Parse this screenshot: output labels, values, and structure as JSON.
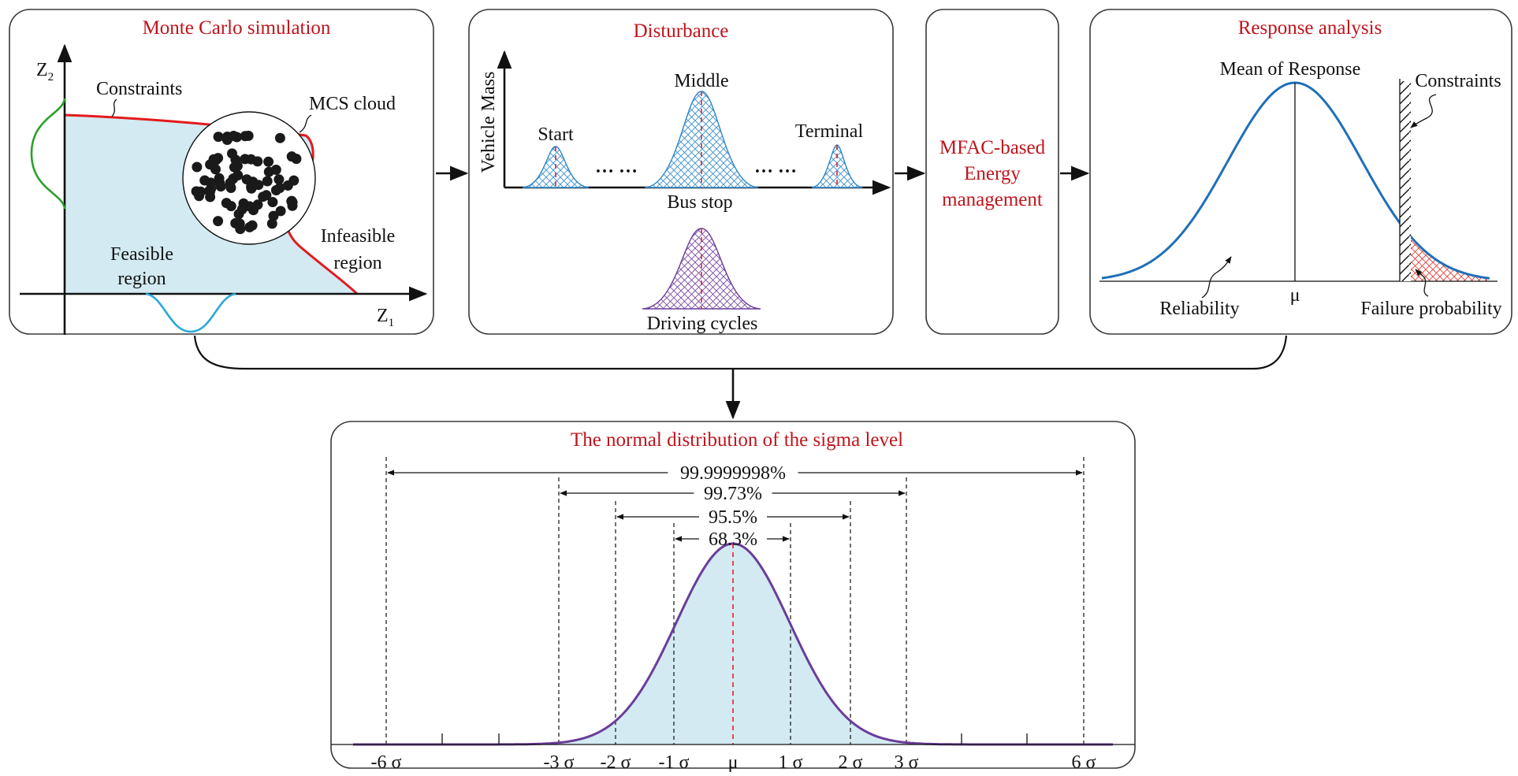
{
  "colors": {
    "title_red": "#c0141c",
    "feasible_fill": "#d3eaf2",
    "constraint_red": "#e41a1c",
    "blue_curve": "#1f6fb8",
    "green_curve": "#2ca02c",
    "cyan_curve": "#2aa7d8",
    "purple_curve": "#6a3d9a",
    "axis_black": "#111111"
  },
  "mcs_panel": {
    "title": "Monte Carlo simulation",
    "z2_label": "Z",
    "z2_sub": "2",
    "z1_label": "Z",
    "z1_sub": "1",
    "constraints_label": "Constraints",
    "cloud_label": "MCS cloud",
    "feasible_line1": "Feasible",
    "feasible_line2": "region",
    "infeasible_line1": "Infeasible",
    "infeasible_line2": "region"
  },
  "disturbance_panel": {
    "title": "Disturbance",
    "y_axis_label": "Vehicle Mass",
    "start_label": "Start",
    "middle_label": "Middle",
    "terminal_label": "Terminal",
    "ellipsis_1": "… …",
    "ellipsis_2": "… …",
    "x_axis_label": "Bus stop",
    "driving_label": "Driving cycles"
  },
  "mfac_panel": {
    "line1": "MFAC-based",
    "line2": "Energy",
    "line3": "management"
  },
  "response_panel": {
    "title": "Response analysis",
    "mean_label": "Mean of Response",
    "constraints_label": "Constraints",
    "mu_label": "μ",
    "reliability_label": "Reliability",
    "failure_label": "Failure probability"
  },
  "sigma_panel": {
    "title": "The normal distribution of the sigma level",
    "intervals": [
      {
        "label": "99.9999998%",
        "k": 6
      },
      {
        "label": "99.73%",
        "k": 3
      },
      {
        "label": "95.5%",
        "k": 2
      },
      {
        "label": "68.3%",
        "k": 1
      }
    ],
    "ticks": [
      {
        "label": "-6 σ",
        "k": -6
      },
      {
        "label": "-3 σ",
        "k": -3
      },
      {
        "label": "-2 σ",
        "k": -2
      },
      {
        "label": "-1 σ",
        "k": -1
      },
      {
        "label": "μ",
        "k": 0
      },
      {
        "label": "1 σ",
        "k": 1
      },
      {
        "label": "2 σ",
        "k": 2
      },
      {
        "label": "3 σ",
        "k": 3
      },
      {
        "label": "6 σ",
        "k": 6
      }
    ],
    "minor_tick_k": [
      -5,
      -4,
      4,
      5
    ]
  }
}
